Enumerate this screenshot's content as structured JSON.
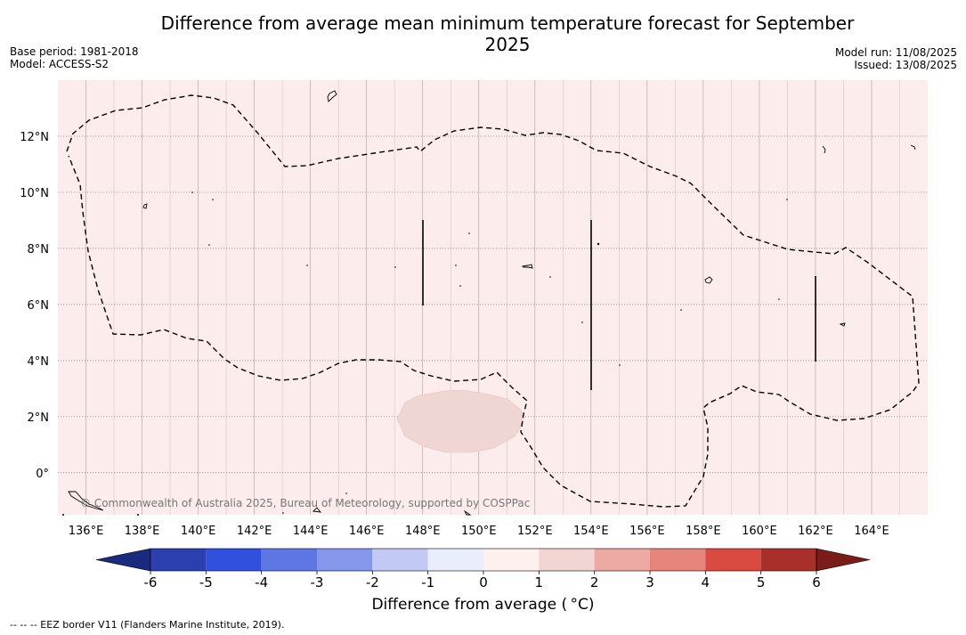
{
  "title": "Difference from average mean minimum temperature forecast for September 2025",
  "meta_left": {
    "base_period": "Base period: 1981-2018",
    "model": "Model: ACCESS-S2"
  },
  "meta_right": {
    "model_run": "Model run: 11/08/2025",
    "issued": "Issued: 13/08/2025"
  },
  "copyright": "© Commonwealth of Australia 2025, Bureau of Meteorology, supported by COSPPac",
  "colorbar": {
    "title": "Difference from average ( °C)",
    "ticks": [
      "-6",
      "-5",
      "-4",
      "-3",
      "-2",
      "-1",
      "0",
      "1",
      "2",
      "3",
      "4",
      "5",
      "6"
    ],
    "colors": [
      "#2b3fae",
      "#3150dd",
      "#5f77e4",
      "#8597ea",
      "#c2c9f4",
      "#eaedfc",
      "#fdf0ef",
      "#f1d5d3",
      "#edaaa4",
      "#e6857c",
      "#d94a40",
      "#a9302a"
    ],
    "under_color": "#1a2a7e",
    "over_color": "#7a1c18"
  },
  "map": {
    "background_color": "#fceceb",
    "anomaly_patch_color": "#f0d6d3",
    "lat_labels": [
      "12°N",
      "10°N",
      "8°N",
      "6°N",
      "4°N",
      "2°N",
      "0°"
    ],
    "lat_values": [
      12,
      10,
      8,
      6,
      4,
      2,
      0
    ],
    "lon_labels": [
      "136°E",
      "138°E",
      "140°E",
      "142°E",
      "144°E",
      "146°E",
      "148°E",
      "150°E",
      "152°E",
      "154°E",
      "156°E",
      "158°E",
      "160°E",
      "162°E",
      "164°E"
    ],
    "lon_values": [
      136,
      138,
      140,
      142,
      144,
      146,
      148,
      150,
      152,
      154,
      156,
      158,
      160,
      162,
      164
    ],
    "lon_range": [
      135,
      166
    ],
    "lat_range": [
      -1.5,
      14
    ]
  },
  "footnote": "--  --  -- EEZ border V11 (Flanders Marine Institute, 2019)."
}
